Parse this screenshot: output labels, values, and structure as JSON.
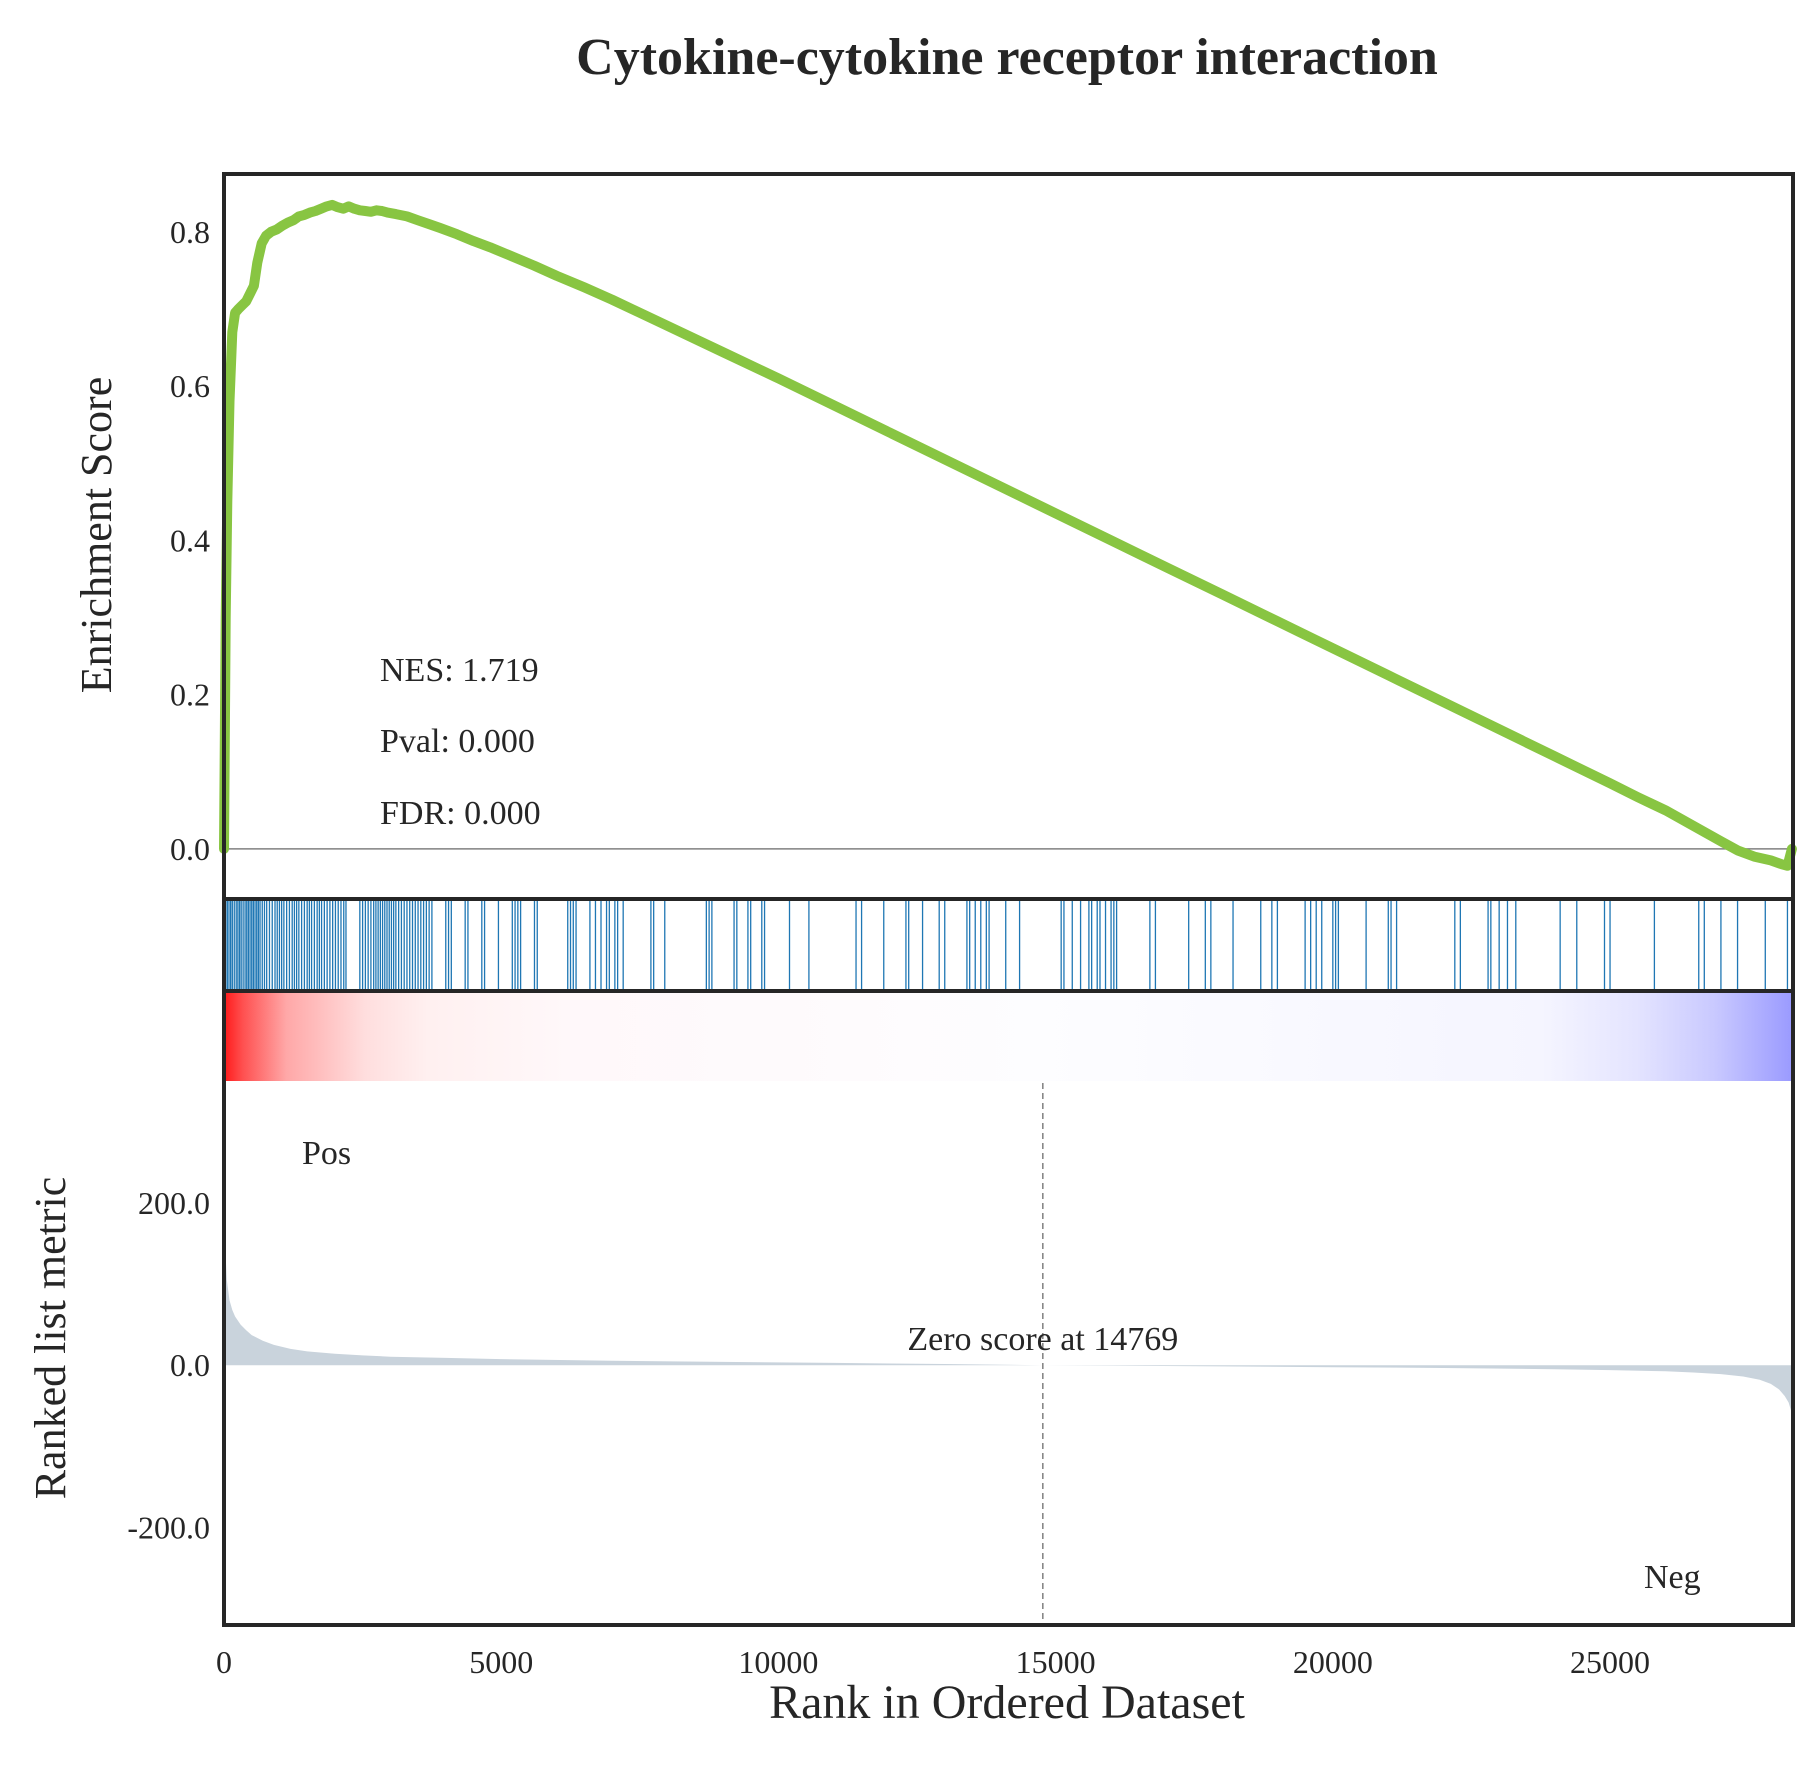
{
  "chart_data": {
    "type": "line",
    "title": "Cytokine-cytokine receptor interaction",
    "colors": {
      "es_line": "#88c542",
      "hits": "#1f77b4",
      "metric_fill": "#c9d3dc",
      "pos": "#ff0000",
      "neg": "#0000ff",
      "frame": "#262626",
      "zero_line": "#808080"
    },
    "xlim": [
      0,
      28300
    ],
    "x_ticks": [
      0,
      5000,
      10000,
      15000,
      20000,
      25000
    ],
    "x_tick_labels": [
      "0",
      "5000",
      "10000",
      "15000",
      "20000",
      "25000"
    ],
    "xlabel": "Rank in Ordered Dataset",
    "es_panel": {
      "ylabel": "Enrichment Score",
      "ylim": [
        -0.065,
        0.875
      ],
      "y_ticks": [
        0.0,
        0.2,
        0.4,
        0.6,
        0.8
      ],
      "y_tick_labels": [
        "0.0",
        "0.2",
        "0.4",
        "0.6",
        "0.8"
      ],
      "stats": [
        "NES: 1.719",
        "Pval: 0.000",
        "FDR: 0.000"
      ],
      "series": {
        "x": [
          0,
          30,
          60,
          100,
          150,
          200,
          260,
          330,
          400,
          470,
          540,
          600,
          680,
          760,
          850,
          950,
          1050,
          1150,
          1250,
          1350,
          1450,
          1550,
          1650,
          1750,
          1850,
          1950,
          2050,
          2150,
          2250,
          2350,
          2450,
          2550,
          2650,
          2750,
          2850,
          2950,
          3100,
          3300,
          3500,
          3700,
          3900,
          4200,
          4500,
          4800,
          5200,
          5600,
          6000,
          6500,
          7000,
          8000,
          9000,
          10000,
          11000,
          12000,
          13000,
          14000,
          15000,
          16000,
          17000,
          18000,
          19000,
          20000,
          21000,
          22000,
          23000,
          24000,
          25000,
          25500,
          26000,
          26500,
          27000,
          27300,
          27600,
          27900,
          28100,
          28200,
          28280
        ],
        "y": [
          0.0,
          0.3,
          0.45,
          0.58,
          0.67,
          0.695,
          0.7,
          0.705,
          0.71,
          0.72,
          0.73,
          0.76,
          0.785,
          0.795,
          0.8,
          0.803,
          0.808,
          0.812,
          0.815,
          0.82,
          0.822,
          0.825,
          0.827,
          0.83,
          0.833,
          0.835,
          0.832,
          0.83,
          0.833,
          0.83,
          0.828,
          0.827,
          0.826,
          0.828,
          0.827,
          0.825,
          0.823,
          0.82,
          0.815,
          0.81,
          0.805,
          0.797,
          0.788,
          0.78,
          0.768,
          0.756,
          0.743,
          0.728,
          0.712,
          0.678,
          0.644,
          0.61,
          0.575,
          0.54,
          0.505,
          0.47,
          0.435,
          0.4,
          0.365,
          0.33,
          0.295,
          0.26,
          0.225,
          0.19,
          0.155,
          0.12,
          0.085,
          0.067,
          0.05,
          0.03,
          0.01,
          -0.002,
          -0.01,
          -0.015,
          -0.02,
          -0.022,
          0.0
        ]
      }
    },
    "hits_panel": {
      "positions": [
        30,
        60,
        90,
        120,
        150,
        185,
        220,
        250,
        280,
        310,
        345,
        380,
        410,
        440,
        470,
        500,
        530,
        560,
        590,
        620,
        650,
        690,
        730,
        770,
        820,
        870,
        920,
        960,
        1000,
        1040,
        1080,
        1130,
        1180,
        1230,
        1270,
        1310,
        1350,
        1400,
        1450,
        1500,
        1540,
        1580,
        1630,
        1680,
        1720,
        1760,
        1810,
        1860,
        1910,
        1960,
        2010,
        2060,
        2110,
        2160,
        2200,
        2450,
        2500,
        2550,
        2600,
        2650,
        2700,
        2740,
        2780,
        2820,
        2860,
        2900,
        2940,
        2980,
        3020,
        3060,
        3100,
        3150,
        3200,
        3250,
        3300,
        3350,
        3400,
        3450,
        3500,
        3550,
        3600,
        3650,
        3700,
        3750,
        4000,
        4050,
        4100,
        4350,
        4400,
        4650,
        4700,
        4950,
        5200,
        5250,
        5300,
        5350,
        5600,
        5650,
        6200,
        6250,
        6300,
        6350,
        6600,
        6700,
        6800,
        6900,
        6950,
        7050,
        7100,
        7200,
        7700,
        7750,
        7950,
        8700,
        8750,
        8800,
        9200,
        9250,
        9450,
        9500,
        9700,
        9750,
        10200,
        10550,
        11400,
        11500,
        11900,
        12300,
        12350,
        12600,
        12900,
        13000,
        13400,
        13450,
        13550,
        13650,
        13750,
        13800,
        14100,
        14350,
        15100,
        15150,
        15300,
        15450,
        15600,
        15650,
        15750,
        15800,
        15900,
        16000,
        16050,
        16100,
        16700,
        16800,
        17400,
        17700,
        17800,
        18200,
        18700,
        18900,
        19000,
        19500,
        19600,
        19700,
        19800,
        20000,
        20050,
        20100,
        20600,
        21000,
        21050,
        21150,
        22200,
        22300,
        22800,
        22850,
        23000,
        23150,
        23300,
        24100,
        24400,
        24900,
        25000,
        25800,
        26600,
        26700,
        27000,
        27300,
        27800,
        28200
      ]
    },
    "metric_panel": {
      "ylabel": "Ranked list metric",
      "ylim": [
        -320,
        350
      ],
      "y_ticks": [
        -200,
        0,
        200
      ],
      "y_tick_labels": [
        "-200.0",
        "0.0",
        "200.0"
      ],
      "pos_label": "Pos",
      "neg_label": "Neg",
      "zero_cross": 14769,
      "zero_label": "Zero score at 14769",
      "series": {
        "x": [
          0,
          20,
          50,
          100,
          150,
          200,
          300,
          400,
          500,
          700,
          900,
          1200,
          1500,
          2000,
          2500,
          3000,
          4000,
          5000,
          7000,
          9000,
          11000,
          13000,
          14769,
          16000,
          18000,
          20000,
          22000,
          24000,
          25000,
          26000,
          26500,
          27000,
          27400,
          27700,
          27900,
          28050,
          28150,
          28220,
          28260,
          28290,
          28300
        ],
        "y": [
          230,
          150,
          105,
          80,
          68,
          60,
          50,
          43,
          37,
          30,
          25,
          20,
          17,
          14,
          12,
          10.5,
          9,
          7.5,
          5.5,
          4,
          2.8,
          1.5,
          0,
          -0.5,
          -1.5,
          -2.5,
          -3.5,
          -5,
          -6,
          -7.5,
          -9,
          -11,
          -14,
          -18,
          -23,
          -30,
          -38,
          -46,
          -55,
          -62,
          -68
        ]
      }
    }
  }
}
